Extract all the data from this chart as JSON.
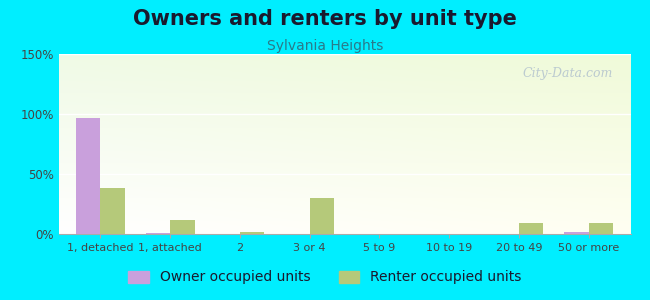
{
  "title": "Owners and renters by unit type",
  "subtitle": "Sylvania Heights",
  "categories": [
    "1, detached",
    "1, attached",
    "2",
    "3 or 4",
    "5 to 9",
    "10 to 19",
    "20 to 49",
    "50 or more"
  ],
  "owner_values": [
    97,
    1,
    0,
    0,
    0,
    0,
    0,
    2
  ],
  "renter_values": [
    38,
    12,
    2,
    30,
    0,
    0,
    9,
    9
  ],
  "owner_color": "#c9a0dc",
  "renter_color": "#b5c97a",
  "ylim": [
    0,
    150
  ],
  "yticks": [
    0,
    50,
    100,
    150
  ],
  "ytick_labels": [
    "0%",
    "50%",
    "100%",
    "150%"
  ],
  "background_color": "#00eeff",
  "title_fontsize": 15,
  "subtitle_fontsize": 10,
  "legend_fontsize": 10,
  "watermark": "City-Data.com",
  "title_color": "#1a1a2e",
  "subtitle_color": "#2a7a8a",
  "tick_label_color": "#444444"
}
